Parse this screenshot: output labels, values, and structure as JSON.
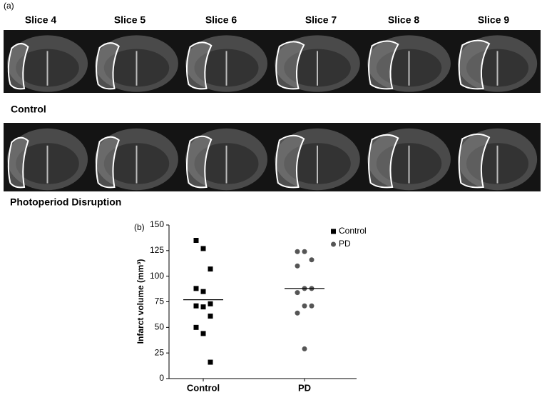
{
  "panel_a": {
    "label": "(a)",
    "slices": [
      "Slice 4",
      "Slice 5",
      "Slice 6",
      "Slice 7",
      "Slice 8",
      "Slice 9"
    ],
    "rows": [
      "Control",
      "Photoperiod Disruption"
    ]
  },
  "chart_data": {
    "type": "scatter",
    "panel_label": "(b)",
    "ylabel": "Infarct volume (mm³)",
    "categories": [
      "Control",
      "PD"
    ],
    "series": [
      {
        "name": "Control",
        "color": "#000000",
        "marker": "square",
        "values": [
          135,
          127,
          107,
          88,
          85,
          73,
          71,
          70,
          61,
          50,
          44,
          16
        ],
        "mean": 77
      },
      {
        "name": "PD",
        "color": "#555555",
        "marker": "circle",
        "values": [
          124,
          124,
          116,
          110,
          88,
          88,
          84,
          71,
          71,
          64,
          29
        ],
        "mean": 88
      }
    ],
    "ylim": [
      0,
      150
    ],
    "yticks": [
      0,
      25,
      50,
      75,
      100,
      125,
      150
    ],
    "legend": "upper right"
  }
}
